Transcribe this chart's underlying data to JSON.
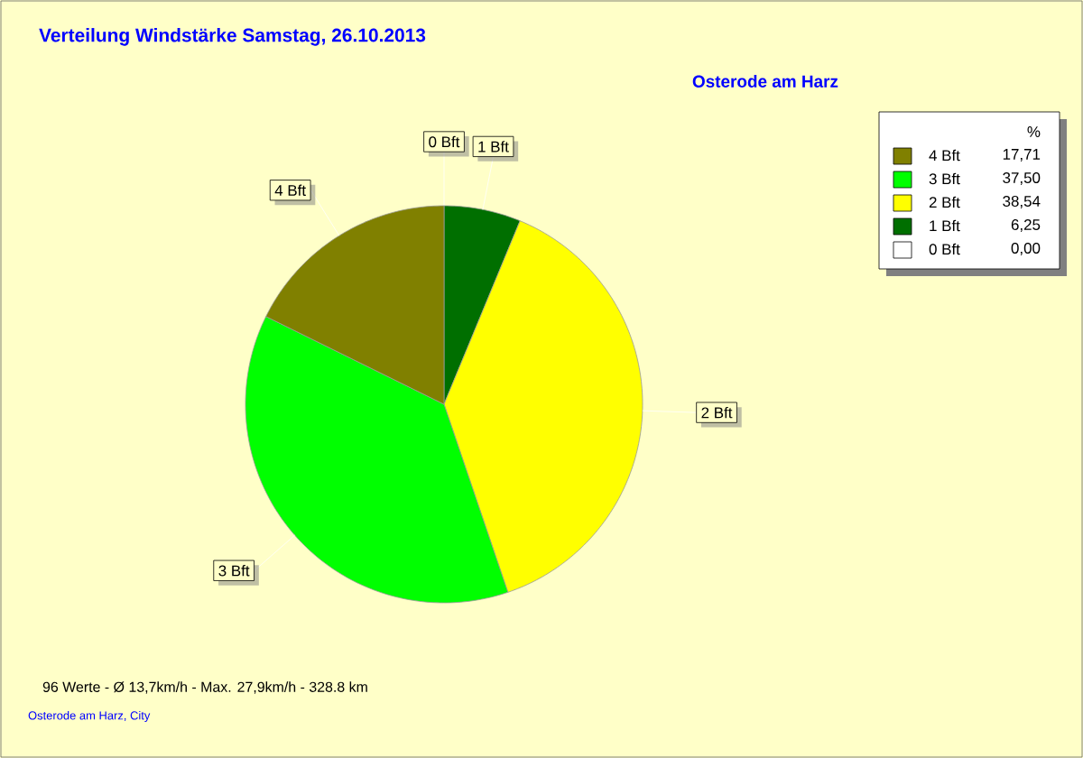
{
  "chart_data": {
    "type": "pie",
    "title": "Verteilung Windstärke  Samstag, 26.10.2013",
    "subtitle": "Osterode am Harz",
    "legend_title": "%",
    "categories": [
      "0 Bft",
      "1 Bft",
      "2 Bft",
      "3 Bft",
      "4 Bft"
    ],
    "values": [
      0,
      6.25,
      38.54,
      37.5,
      17.71
    ],
    "value_labels": [
      "0,00",
      "6,25",
      "38,54",
      "37,50",
      "17,71"
    ],
    "colors": [
      "#ffffff",
      "#006f00",
      "#ffff00",
      "#00ff00",
      "#808000"
    ],
    "legend": "top right",
    "annotations": [
      "96 Werte   -   Ø 13,7km/h  -  Max. 27,9km/h  -   328.8 km",
      "Osterode am Harz, City"
    ]
  }
}
